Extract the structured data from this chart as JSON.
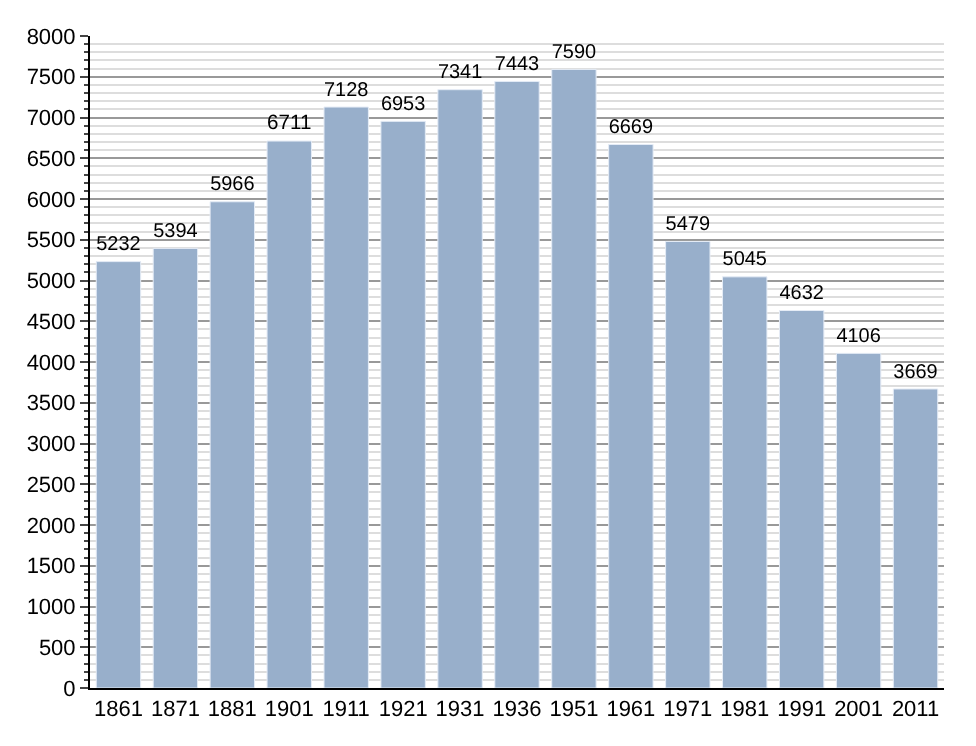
{
  "chart_data": {
    "type": "bar",
    "categories": [
      "1861",
      "1871",
      "1881",
      "1901",
      "1911",
      "1921",
      "1931",
      "1936",
      "1951",
      "1961",
      "1971",
      "1981",
      "1991",
      "2001",
      "2011"
    ],
    "values": [
      5232,
      5394,
      5966,
      6711,
      7128,
      6953,
      7341,
      7443,
      7590,
      6669,
      5479,
      5045,
      4632,
      4106,
      3669
    ],
    "color": "#98afcb",
    "data_labels": true,
    "ylim": [
      0,
      8000
    ],
    "yticks": [
      0,
      500,
      1000,
      1500,
      2000,
      2500,
      3000,
      3500,
      4000,
      4500,
      5000,
      5500,
      6000,
      6500,
      7000,
      7500,
      8000
    ],
    "grid": "y"
  }
}
